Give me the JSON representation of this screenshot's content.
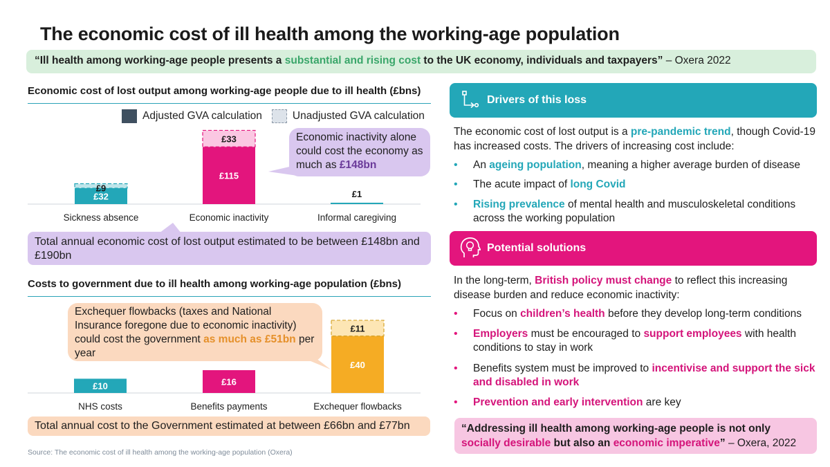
{
  "title": "The economic cost of ill health among the working-age population",
  "quote": {
    "part1": "“Ill health among working-age people presents a ",
    "highlight": "substantial and rising cost",
    "part2": " to the UK economy, individuals and taxpayers”",
    "attribution": " – Oxera 2022"
  },
  "colors": {
    "teal": "#23a7b8",
    "pink": "#e3157d",
    "orange": "#f5ac24",
    "adjusted": "#3f5060",
    "purple_bubble": "#d9c7ef",
    "orange_bubble": "#fbd9bf"
  },
  "chart_data": [
    {
      "type": "bar",
      "stacked": true,
      "title": "Economic cost of lost output among working-age people due to ill health (£bns)",
      "categories": [
        "Sickness absence",
        "Economic inactivity",
        "Informal caregiving"
      ],
      "series": [
        {
          "name": "Adjusted GVA calculation",
          "values": [
            32,
            115,
            1
          ],
          "labels": [
            "£32",
            "£115",
            "£1"
          ]
        },
        {
          "name": "Unadjusted GVA calculation",
          "values": [
            9,
            33,
            null
          ],
          "labels": [
            "£9",
            "£33",
            ""
          ]
        }
      ],
      "bar_colors": [
        "#23a7b8",
        "#e3157d",
        "#23a7b8"
      ],
      "legend": "top-right",
      "ylim": [
        0,
        160
      ],
      "grid": false
    },
    {
      "type": "bar",
      "stacked": true,
      "title": "Costs to government due to ill health among working-age population (£bns)",
      "categories": [
        "NHS costs",
        "Benefits payments",
        "Exchequer flowbacks"
      ],
      "series": [
        {
          "values": [
            10,
            16,
            40
          ],
          "labels": [
            "£10",
            "£16",
            "£40"
          ]
        },
        {
          "values": [
            null,
            null,
            11
          ],
          "labels": [
            "",
            "",
            "£11"
          ]
        }
      ],
      "bar_colors": [
        "#23a7b8",
        "#e3157d",
        "#f5ac24"
      ],
      "ylim": [
        0,
        55
      ],
      "grid": false
    }
  ],
  "legend": {
    "adjusted": "Adjusted GVA calculation",
    "unadjusted": "Unadjusted GVA calculation"
  },
  "bubble1": {
    "text": "Economic inactivity alone could cost the economy as much as ",
    "value": "£148bn"
  },
  "total1": {
    "text": "Total annual economic cost of lost output estimated to be between ",
    "value": "£148bn and £190bn"
  },
  "bubble2": {
    "text": "Exchequer flowbacks (taxes and National Insurance foregone due to economic inactivity) could cost the government ",
    "value": "as much as £51bn",
    "text2": " per year"
  },
  "total2": {
    "text": "Total annual cost to the Government estimated at between ",
    "value": "£66bn and £77bn"
  },
  "source": "Source: The economic cost of ill health among the working-age population (Oxera)",
  "drivers": {
    "heading": "Drivers of this loss",
    "icon": "flow-arrow-icon",
    "intro1": "The economic cost of lost output is a ",
    "intro_hl": "pre-pandemic trend",
    "intro2": ", though Covid-19 has increased costs. The drivers of increasing cost include:",
    "bullets": [
      {
        "pre": "An ",
        "hl": "ageing population",
        "post": ", meaning a higher average burden of disease"
      },
      {
        "pre": "The acute impact of ",
        "hl": "long Covid",
        "post": ""
      },
      {
        "pre": "",
        "hl": "Rising prevalence",
        "post": " of mental health and musculoskeletal conditions across the working population"
      }
    ]
  },
  "solutions": {
    "heading": "Potential solutions",
    "icon": "head-lightbulb-icon",
    "intro1": "In the long-term, ",
    "intro_hl": "British policy must change",
    "intro2": " to reflect this increasing disease burden and reduce economic inactivity:",
    "bullets": [
      {
        "pre": "Focus on ",
        "hl": "children’s health",
        "post": " before they develop long-term conditions"
      },
      {
        "pre": "",
        "hl": "Employers",
        "mid": " must be encouraged to ",
        "hl2": "support employees",
        "post": " with health conditions to stay in work"
      },
      {
        "pre": "Benefits system must be improved to ",
        "hl": "incentivise and support the sick and disabled in work",
        "post": ""
      },
      {
        "pre": "",
        "hl": "Prevention and early intervention",
        "post": " are key"
      }
    ]
  },
  "closing_quote": {
    "part1": "“Addressing ill health among working-age people is not only ",
    "hl1": "socially desirable",
    "part2": " but also an ",
    "hl2": "economic imperative",
    "part3": "”",
    "attribution": " – Oxera, 2022"
  }
}
